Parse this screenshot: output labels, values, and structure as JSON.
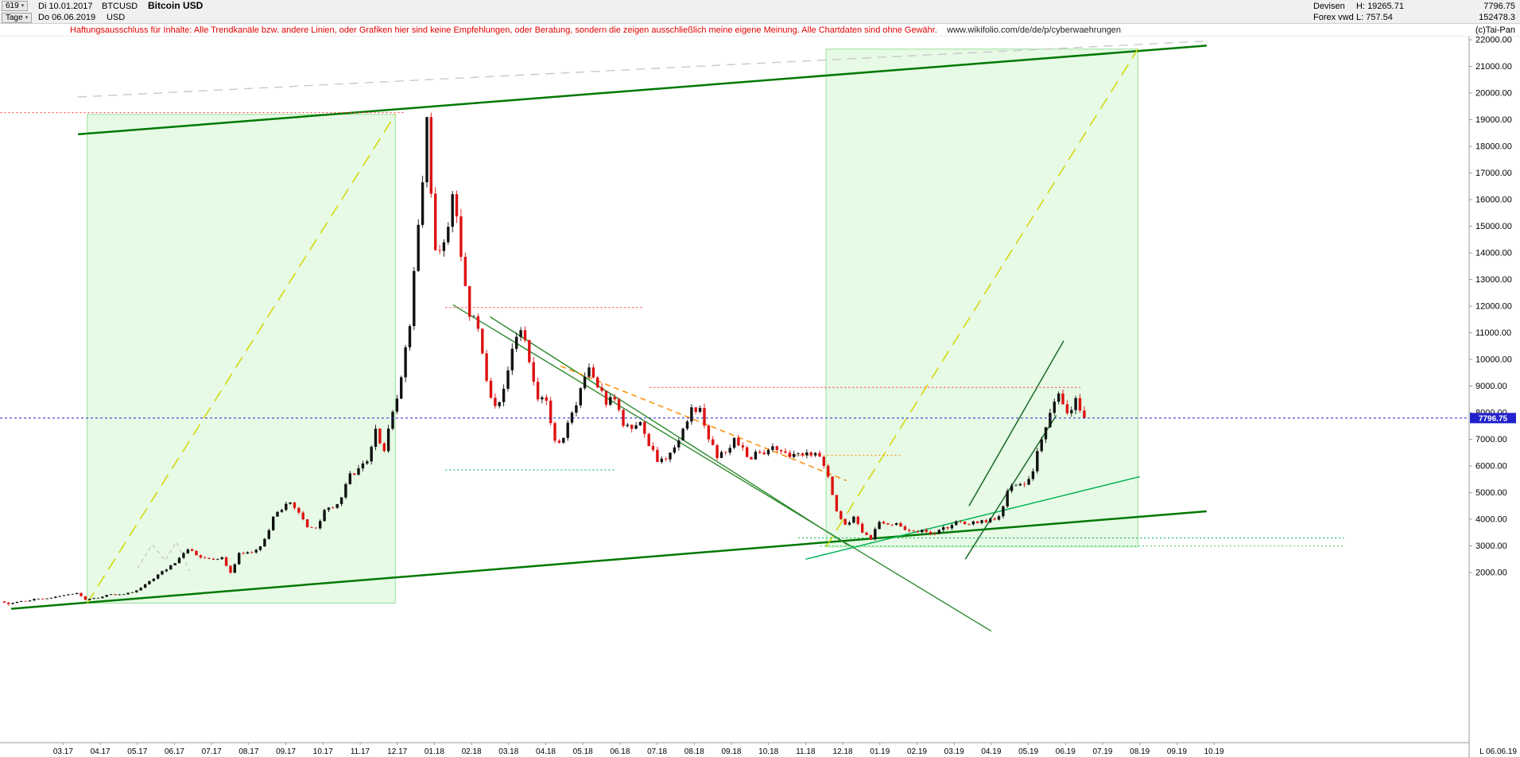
{
  "header": {
    "bars_count": "619",
    "bars_dropdown_icon": "▾",
    "start_date": "Di 10.01.2017",
    "symbol": "BTCUSD",
    "currency": "USD",
    "title": "Bitcoin USD",
    "period": "Tage",
    "period_dropdown_icon": "▾",
    "end_date": "Do 06.06.2019",
    "market": "Devisen",
    "feed": "Forex vwd",
    "high_label": "H:",
    "high_value": "19265.71",
    "low_label": "L:",
    "low_value": "757.54",
    "last_price": "7796.75",
    "volume": "152478.3",
    "copyright": "(c)Tai-Pan"
  },
  "disclaimer": {
    "text": "Haftungsausschluss für Inhalte: Alle Trendkanäle bzw. andere Linien, oder Grafiken hier sind keine Empfehlungen, oder Beratung, sondern die zeigen ausschließlich meine eigene Meinung. Alle Chartdaten sind ohne Gewähr.",
    "url": "www.wikifolio.com/de/de/p/cyberwaehrungen"
  },
  "axes": {
    "y_labels": [
      "22000.00",
      "21000.00",
      "20000.00",
      "19000.00",
      "18000.00",
      "17000.00",
      "16000.00",
      "15000.00",
      "14000.00",
      "13000.00",
      "12000.00",
      "11000.00",
      "10000.00",
      "9000.00",
      "8000.00",
      "7000.00",
      "6000.00",
      "5000.00",
      "4000.00",
      "3000.00",
      "2000.00"
    ],
    "x_labels": [
      "03.17",
      "04.17",
      "05.17",
      "06.17",
      "07.17",
      "08.17",
      "09.17",
      "10.17",
      "11.17",
      "12.17",
      "01.18",
      "02.18",
      "03.18",
      "04.18",
      "05.18",
      "06.18",
      "07.18",
      "08.18",
      "09.18",
      "10.18",
      "11.18",
      "12.18",
      "01.19",
      "02.19",
      "03.19",
      "04.19",
      "05.19",
      "06.19",
      "07.19",
      "08.19",
      "09.19",
      "10.19"
    ],
    "last_date_label": "L 06.06.19"
  },
  "chart_data": {
    "type": "candlestick",
    "title": "Bitcoin USD",
    "symbol": "BTCUSD",
    "timeframe": "Tage (daily), 10.01.2017 - 06.06.2019",
    "x_unit": "months_since_2017_01",
    "series_interval": "weekly_closes_read_from_chart",
    "ylim_labeled": [
      2000,
      22000
    ],
    "current_price": 7796.75,
    "period_high": 19265.71,
    "period_low": 757.54,
    "weekly_closes": [
      920,
      820,
      900,
      920,
      1010,
      1000,
      1050,
      1120,
      1180,
      1230,
      970,
      1040,
      1090,
      1185,
      1180,
      1240,
      1330,
      1560,
      1770,
      2050,
      2270,
      2550,
      2870,
      2650,
      2540,
      2480,
      2570,
      1990,
      2730,
      2760,
      2850,
      3260,
      4100,
      4350,
      4630,
      4250,
      3700,
      3660,
      4350,
      4430,
      4820,
      5720,
      5910,
      6170,
      7400,
      6560,
      8040,
      9330,
      11250,
      15050,
      19100,
      14100,
      14400,
      16200,
      13850,
      11600,
      11150,
      9200,
      8250,
      8900,
      10400,
      11100,
      9900,
      8500,
      8450,
      6950,
      7050,
      8000,
      8920,
      9700,
      8950,
      8300,
      8500,
      7500,
      7400,
      7650,
      6750,
      6150,
      6250,
      6700,
      7400,
      8200,
      8180,
      7000,
      6300,
      6500,
      7050,
      6700,
      6250,
      6500,
      6600,
      6600,
      6500,
      6450,
      6400,
      6400,
      6350,
      5600,
      4300,
      3800,
      4100,
      3500,
      3250,
      3900,
      3800,
      3850,
      3600,
      3550,
      3600,
      3460,
      3600,
      3660,
      3920,
      3820,
      3920,
      3960,
      4020,
      4110,
      5060,
      5270,
      5300,
      5800,
      7000,
      7990,
      8720,
      7980,
      8550,
      7796.75
    ],
    "colors": {
      "up": "#111111",
      "down": "#dd1111",
      "zone_fill": "rgba(130,230,130,0.20)",
      "zone_border": "#9ce09c",
      "channel": "#007800",
      "fan": "#d6d600",
      "last_price": "#2222cc"
    },
    "overlays": {
      "rects": [
        {
          "name": "zone-2017",
          "t0": 2.65,
          "p0": 850,
          "t1": 10.95,
          "p1": 19200
        },
        {
          "name": "zone-2019",
          "t0": 22.55,
          "p0": 2960,
          "t1": 30.95,
          "p1": 21650
        }
      ],
      "lines": [
        {
          "name": "channel-upper",
          "t0": 2.4,
          "p0": 18450,
          "t1": 32.8,
          "p1": 21780,
          "color": "#007800",
          "w": 2.5
        },
        {
          "name": "channel-lower",
          "t0": 0.6,
          "p0": 640,
          "t1": 32.8,
          "p1": 4300,
          "color": "#007800",
          "w": 2.5
        },
        {
          "name": "resistance-gray",
          "t0": 2.4,
          "p0": 19850,
          "t1": 32.8,
          "p1": 21950,
          "color": "#c9c9c9",
          "w": 1.4,
          "dash": "11 8"
        },
        {
          "name": "fan-yellow-2017",
          "t0": 2.65,
          "p0": 850,
          "t1": 10.95,
          "p1": 19200,
          "color": "#d6d600",
          "w": 1.5,
          "dash": "16 9"
        },
        {
          "name": "fan-yellow-2019",
          "t0": 22.55,
          "p0": 2960,
          "t1": 30.95,
          "p1": 21650,
          "color": "#d6d600",
          "w": 1.5,
          "dash": "16 9"
        },
        {
          "name": "downtrend-1",
          "t0": 12.5,
          "p0": 12050,
          "t1": 27.0,
          "p1": -200,
          "color": "#2e8b2e",
          "w": 1.4
        },
        {
          "name": "downtrend-2",
          "t0": 13.5,
          "p0": 11600,
          "t1": 23.15,
          "p1": 3020,
          "color": "#2e8b2e",
          "w": 1.4
        },
        {
          "name": "support-rising",
          "t0": 22.0,
          "p0": 2500,
          "t1": 31.0,
          "p1": 5600,
          "color": "#00b050",
          "w": 1.4
        },
        {
          "name": "rally-channel-upper",
          "t0": 26.4,
          "p0": 4500,
          "t1": 28.95,
          "p1": 10700,
          "color": "#1d6b2a",
          "w": 1.5
        },
        {
          "name": "rally-channel-lower",
          "t0": 26.3,
          "p0": 2500,
          "t1": 28.75,
          "p1": 7900,
          "color": "#1d6b2a",
          "w": 1.5
        },
        {
          "name": "downtrend-orange",
          "t0": 15.4,
          "p0": 9750,
          "t1": 23.1,
          "p1": 5450,
          "color": "#ff8c00",
          "w": 1.5,
          "dash": "7 5"
        }
      ],
      "hlines": [
        {
          "name": "level-period-high",
          "p": 19265.71,
          "t0": 0.31,
          "t1": 11.2,
          "color": "#ff3333",
          "dash": "2 3"
        },
        {
          "name": "level-12000",
          "p": 11950,
          "t0": 12.3,
          "t1": 17.6,
          "color": "#ff3333",
          "dash": "2 3"
        },
        {
          "name": "level-8950",
          "p": 8950,
          "t0": 17.8,
          "t1": 29.4,
          "color": "#ff3333",
          "dash": "2 3"
        },
        {
          "name": "level-6400",
          "p": 6400,
          "t0": 21.4,
          "t1": 24.6,
          "color": "#ff8c00",
          "dash": "2 3"
        },
        {
          "name": "level-5850",
          "p": 5850,
          "t0": 12.3,
          "t1": 16.9,
          "color": "#00b050",
          "dash": "2 3"
        },
        {
          "name": "level-3300",
          "p": 3300,
          "t0": 21.8,
          "t1": 36.5,
          "color": "#00b050",
          "dash": "2 3"
        },
        {
          "name": "level-3000",
          "p": 3000,
          "t0": 22.4,
          "t1": 36.5,
          "color": "#33cc66",
          "dash": "2 3"
        }
      ],
      "polylines": [
        {
          "name": "sketch-gray",
          "color": "#c4c4c4",
          "dash": "5 4",
          "w": 1.2,
          "pts": [
            [
              4.0,
              2150
            ],
            [
              4.4,
              3050
            ],
            [
              4.75,
              2450
            ],
            [
              5.05,
              3150
            ],
            [
              5.4,
              2050
            ]
          ]
        }
      ]
    }
  }
}
